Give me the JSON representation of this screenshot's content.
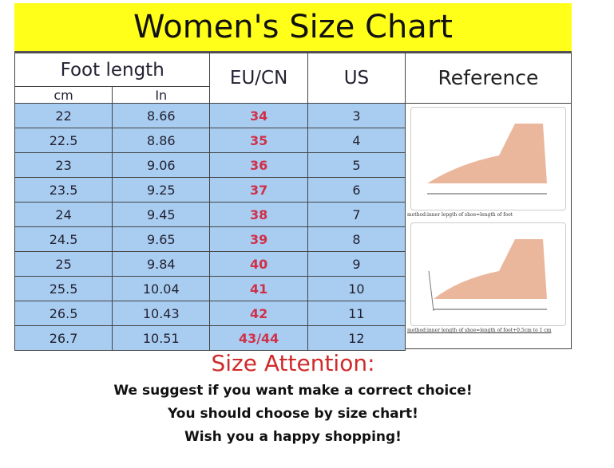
{
  "title": "Women's Size Chart",
  "headers": {
    "foot_length": "Foot length",
    "cm": "cm",
    "in": "In",
    "eu": "EU/CN",
    "us": "US",
    "reference": "Reference"
  },
  "rows": [
    {
      "cm": "22",
      "in": "8.66",
      "eu": "34",
      "us": "3"
    },
    {
      "cm": "22.5",
      "in": "8.86",
      "eu": "35",
      "us": "4"
    },
    {
      "cm": "23",
      "in": "9.06",
      "eu": "36",
      "us": "5"
    },
    {
      "cm": "23.5",
      "in": "9.25",
      "eu": "37",
      "us": "6"
    },
    {
      "cm": "24",
      "in": "9.45",
      "eu": "38",
      "us": "7"
    },
    {
      "cm": "24.5",
      "in": "9.65",
      "eu": "39",
      "us": "8"
    },
    {
      "cm": "25",
      "in": "9.84",
      "eu": "40",
      "us": "9"
    },
    {
      "cm": "25.5",
      "in": "10.04",
      "eu": "41",
      "us": "10"
    },
    {
      "cm": "26.5",
      "in": "10.43",
      "eu": "42",
      "us": "11"
    },
    {
      "cm": "26.7",
      "in": "10.51",
      "eu": "43/44",
      "us": "12"
    }
  ],
  "reference": {
    "caption1": "method:inner lepgth of shoe=length of foot",
    "caption2": "method:inner length of shoe=length of foot+0.5cm to 1 cm"
  },
  "attention": {
    "title": "Size Attention:",
    "lines": [
      "We suggest if you want make a correct choice!",
      "You should choose by size chart!",
      "Wish you a happy shopping!"
    ]
  },
  "colors": {
    "title_bg": "#ffff1a",
    "row_bg": "#a9cdf0",
    "eu_text": "#d0304a",
    "attention_text": "#d02a2a"
  }
}
